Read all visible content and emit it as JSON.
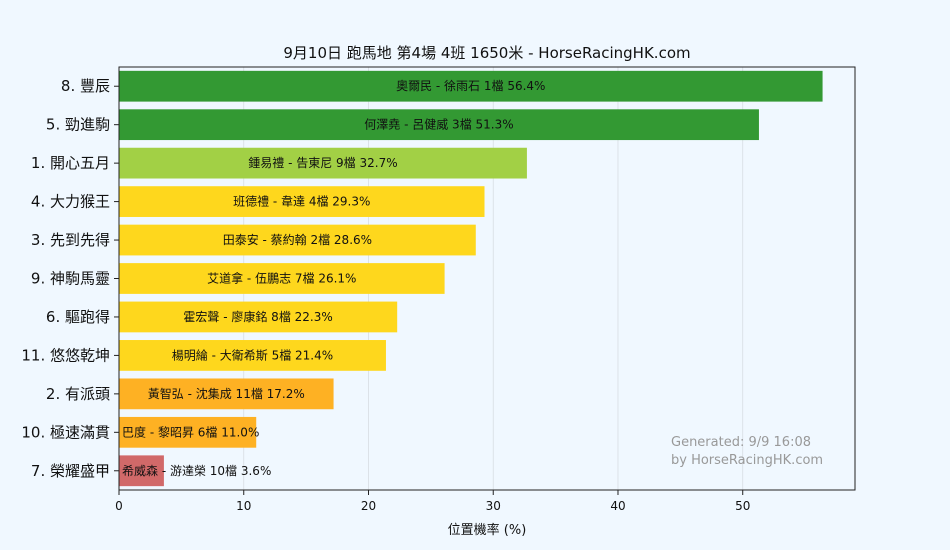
{
  "chart_data": {
    "type": "bar",
    "orientation": "horizontal",
    "title": "9月10日  跑馬地  第4場  4班  1650米 - HorseRacingHK.com",
    "xlabel": "位置機率 (%)",
    "xlim": [
      0,
      59
    ],
    "xticks": [
      0,
      10,
      20,
      30,
      40,
      50
    ],
    "grid": "vertical",
    "categories": [
      "8. 豐辰",
      "5. 勁進駒",
      "1. 開心五月",
      "4. 大力猴王",
      "3. 先到先得",
      "9. 神駒馬靈",
      "6. 驅跑得",
      "11. 悠悠乾坤",
      "2. 有派頭",
      "10. 極速滿貫",
      "7. 榮耀盛甲"
    ],
    "values": [
      56.4,
      51.3,
      32.7,
      29.3,
      28.6,
      26.1,
      22.3,
      21.4,
      17.2,
      11.0,
      3.6
    ],
    "bar_labels": [
      "奧爾民 - 徐雨石 1檔  56.4%",
      "何澤堯 - 呂健威 3檔  51.3%",
      "鍾易禮 - 告東尼 9檔  32.7%",
      "班德禮 - 韋達 4檔  29.3%",
      "田泰安 - 蔡約翰 2檔  28.6%",
      "艾道拿 - 伍鵬志 7檔  26.1%",
      "霍宏聲 - 廖康銘 8檔  22.3%",
      "楊明綸 - 大衛希斯 5檔  21.4%",
      "黃智弘 - 沈集成 11檔  17.2%",
      "巴度 - 黎昭昇 6檔  11.0%",
      "希威森 - 游達榮 10檔  3.6%"
    ],
    "colors": [
      "#339933",
      "#339933",
      "#a2d045",
      "#fed71d",
      "#fed71d",
      "#fed71d",
      "#fed71d",
      "#fed71d",
      "#feb123",
      "#feb123",
      "#d16969"
    ]
  },
  "watermark": {
    "line1": "Generated: 9/9 16:08",
    "line2": "by HorseRacingHK.com"
  }
}
